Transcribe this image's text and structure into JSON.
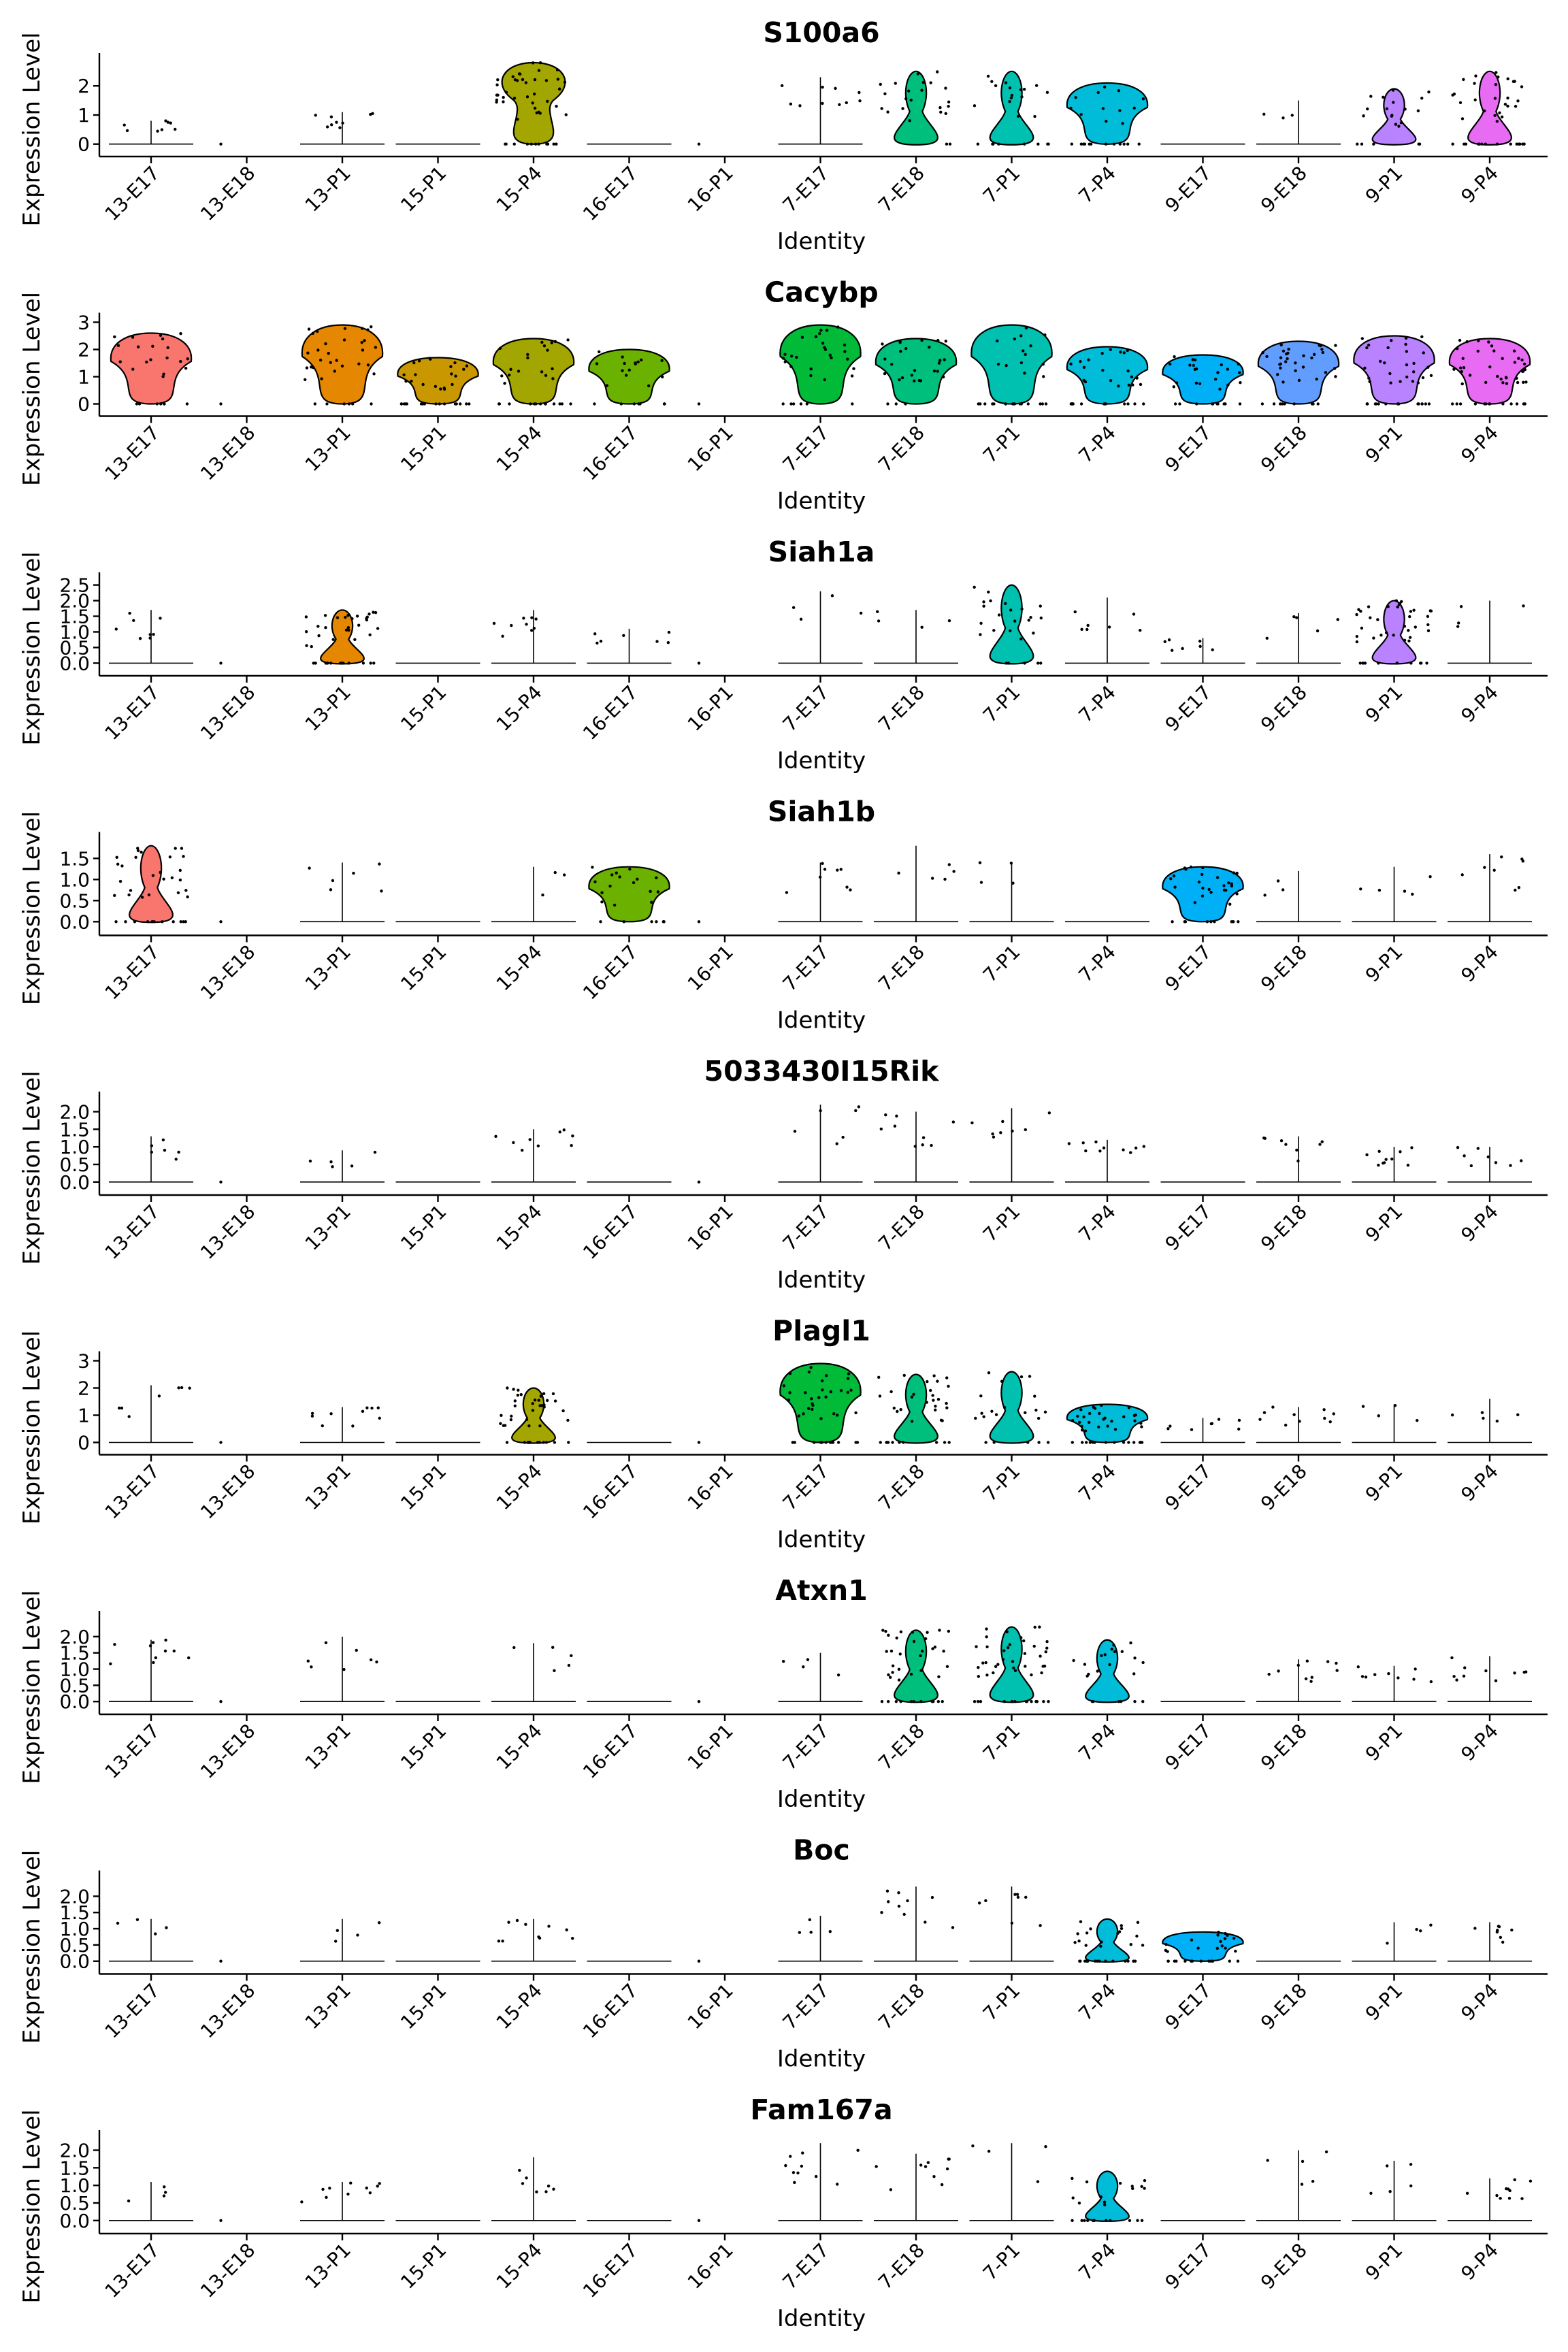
{
  "identities": [
    "13-E17",
    "13-E18",
    "13-P1",
    "15-P1",
    "15-P4",
    "16-E17",
    "16-P1",
    "7-E17",
    "7-E18",
    "7-P1",
    "7-P4",
    "9-E17",
    "9-E18",
    "9-P1",
    "9-P4"
  ],
  "colors": [
    "#F8766D",
    "#E58700",
    "#C99800",
    "#A3A500",
    "#6BB100",
    "#00BA38",
    "#00BF7D",
    "#00C0AF",
    "#00BCD8",
    "#00B0F6",
    "#619CFF",
    "#B983FF",
    "#E76BF3",
    "#FD61D1",
    "#FF67A4"
  ],
  "color_index": [
    0,
    1,
    1,
    2,
    3,
    4,
    4,
    5,
    6,
    7,
    8,
    9,
    10,
    11,
    12
  ],
  "y_axis_label": "Expression Level",
  "x_axis_label": "Identity",
  "chart_data": [
    {
      "type": "violin",
      "title": "S100a6",
      "ylim": [
        -0.1,
        2.8
      ],
      "yticks": [
        "0",
        "1",
        "2"
      ],
      "ytick_values": [
        0,
        1,
        2
      ],
      "max": [
        0.8,
        0,
        1.1,
        0,
        2.8,
        0,
        0,
        2.3,
        2.5,
        2.5,
        2.1,
        0,
        1.5,
        1.9,
        2.5
      ],
      "present": [
        1,
        0,
        1,
        1,
        1,
        1,
        0,
        1,
        1,
        1,
        1,
        1,
        1,
        1,
        1
      ],
      "shape": [
        "z",
        "n",
        "z",
        "z",
        "bv",
        "z",
        "n",
        "z",
        "v",
        "v",
        "b",
        "z",
        "z",
        "v",
        "v"
      ]
    },
    {
      "type": "violin",
      "title": "Cacybp",
      "ylim": [
        -0.1,
        3.0
      ],
      "yticks": [
        "0",
        "1",
        "2",
        "3"
      ],
      "ytick_values": [
        0,
        1,
        2,
        3
      ],
      "max": [
        2.6,
        0,
        2.9,
        1.7,
        2.4,
        2.0,
        0,
        2.9,
        2.4,
        2.9,
        2.1,
        1.8,
        2.3,
        2.5,
        2.4
      ],
      "present": [
        1,
        0,
        1,
        1,
        1,
        1,
        0,
        1,
        1,
        1,
        1,
        1,
        1,
        1,
        1
      ],
      "shape": [
        "b",
        "n",
        "b",
        "b",
        "b",
        "b",
        "n",
        "b",
        "b",
        "b",
        "b",
        "b",
        "b",
        "b",
        "b"
      ]
    },
    {
      "type": "violin",
      "title": "Siah1a",
      "ylim": [
        -0.1,
        2.6
      ],
      "yticks": [
        "0.0",
        "0.5",
        "1.0",
        "1.5",
        "2.0",
        "2.5"
      ],
      "ytick_values": [
        0,
        0.5,
        1,
        1.5,
        2,
        2.5
      ],
      "max": [
        1.7,
        0,
        1.7,
        0,
        1.7,
        1.1,
        0,
        2.3,
        1.7,
        2.5,
        2.1,
        0.8,
        1.6,
        2.0,
        2.0
      ],
      "present": [
        1,
        0,
        1,
        1,
        1,
        1,
        0,
        1,
        1,
        1,
        1,
        1,
        1,
        1,
        1
      ],
      "shape": [
        "z",
        "n",
        "v",
        "z",
        "z",
        "z",
        "n",
        "z",
        "z",
        "v",
        "z",
        "z",
        "z",
        "v",
        "z"
      ]
    },
    {
      "type": "violin",
      "title": "Siah1b",
      "ylim": [
        -0.1,
        1.9
      ],
      "yticks": [
        "0.0",
        "0.5",
        "1.0",
        "1.5"
      ],
      "ytick_values": [
        0,
        0.5,
        1,
        1.5
      ],
      "max": [
        1.8,
        0,
        1.4,
        0,
        1.3,
        1.3,
        0,
        1.4,
        1.8,
        1.4,
        0,
        1.3,
        1.2,
        1.3,
        1.6
      ],
      "present": [
        1,
        0,
        1,
        1,
        1,
        1,
        0,
        1,
        1,
        1,
        1,
        1,
        1,
        1,
        1
      ],
      "shape": [
        "v",
        "n",
        "z",
        "z",
        "z",
        "b",
        "n",
        "z",
        "z",
        "z",
        "z",
        "b",
        "z",
        "z",
        "z"
      ]
    },
    {
      "type": "violin",
      "title": "5033430I15Rik",
      "ylim": [
        -0.1,
        2.3
      ],
      "yticks": [
        "0.0",
        "0.5",
        "1.0",
        "1.5",
        "2.0"
      ],
      "ytick_values": [
        0,
        0.5,
        1,
        1.5,
        2
      ],
      "max": [
        1.3,
        0,
        0.9,
        0,
        1.5,
        0,
        0,
        2.2,
        2.0,
        2.1,
        1.2,
        0,
        1.3,
        1.0,
        1.0
      ],
      "present": [
        1,
        0,
        1,
        1,
        1,
        1,
        0,
        1,
        1,
        1,
        1,
        1,
        1,
        1,
        1
      ],
      "shape": [
        "z",
        "n",
        "z",
        "z",
        "z",
        "z",
        "n",
        "z",
        "z",
        "z",
        "z",
        "z",
        "z",
        "z",
        "z"
      ]
    },
    {
      "type": "violin",
      "title": "Plagl1",
      "ylim": [
        -0.1,
        3.0
      ],
      "yticks": [
        "0",
        "1",
        "2",
        "3"
      ],
      "ytick_values": [
        0,
        1,
        2,
        3
      ],
      "max": [
        2.1,
        0,
        1.3,
        0,
        2.0,
        0,
        0,
        2.9,
        2.5,
        2.6,
        1.4,
        0.9,
        1.3,
        1.4,
        1.6
      ],
      "present": [
        1,
        0,
        1,
        1,
        1,
        1,
        0,
        1,
        1,
        1,
        1,
        1,
        1,
        1,
        1
      ],
      "shape": [
        "z",
        "n",
        "z",
        "z",
        "v",
        "z",
        "n",
        "b",
        "v",
        "v",
        "b",
        "z",
        "z",
        "z",
        "z"
      ]
    },
    {
      "type": "violin",
      "title": "Atxn1",
      "ylim": [
        -0.1,
        2.5
      ],
      "yticks": [
        "0.0",
        "0.5",
        "1.0",
        "1.5",
        "2.0"
      ],
      "ytick_values": [
        0,
        0.5,
        1,
        1.5,
        2
      ],
      "max": [
        1.9,
        0,
        2.0,
        0,
        1.8,
        0,
        0,
        1.5,
        2.2,
        2.3,
        1.9,
        0,
        1.3,
        1.1,
        1.4
      ],
      "present": [
        1,
        0,
        1,
        1,
        1,
        1,
        0,
        1,
        1,
        1,
        1,
        1,
        1,
        1,
        1
      ],
      "shape": [
        "z",
        "n",
        "z",
        "z",
        "z",
        "z",
        "n",
        "z",
        "v",
        "v",
        "v",
        "z",
        "z",
        "z",
        "z"
      ]
    },
    {
      "type": "violin",
      "title": "Boc",
      "ylim": [
        -0.1,
        2.5
      ],
      "yticks": [
        "0.0",
        "0.5",
        "1.0",
        "1.5",
        "2.0"
      ],
      "ytick_values": [
        0,
        0.5,
        1,
        1.5,
        2
      ],
      "max": [
        1.3,
        0,
        1.3,
        0,
        1.3,
        0,
        0,
        1.4,
        2.3,
        2.3,
        1.3,
        0.9,
        0,
        1.2,
        1.2
      ],
      "present": [
        1,
        0,
        1,
        1,
        1,
        1,
        0,
        1,
        1,
        1,
        1,
        1,
        1,
        1,
        1
      ],
      "shape": [
        "z",
        "n",
        "z",
        "z",
        "z",
        "z",
        "n",
        "z",
        "z",
        "z",
        "v",
        "b",
        "z",
        "z",
        "z"
      ]
    },
    {
      "type": "violin",
      "title": "Fam167a",
      "ylim": [
        -0.1,
        2.3
      ],
      "yticks": [
        "0.0",
        "0.5",
        "1.0",
        "1.5",
        "2.0"
      ],
      "ytick_values": [
        0,
        0.5,
        1,
        1.5,
        2
      ],
      "max": [
        1.1,
        0,
        1.1,
        0,
        1.8,
        0,
        0,
        2.2,
        1.9,
        2.2,
        1.4,
        0,
        2.0,
        1.7,
        1.2
      ],
      "present": [
        1,
        0,
        1,
        1,
        1,
        1,
        0,
        1,
        1,
        1,
        1,
        1,
        1,
        1,
        1
      ],
      "shape": [
        "z",
        "n",
        "z",
        "z",
        "z",
        "z",
        "n",
        "z",
        "z",
        "z",
        "v",
        "z",
        "z",
        "z",
        "z"
      ]
    }
  ]
}
